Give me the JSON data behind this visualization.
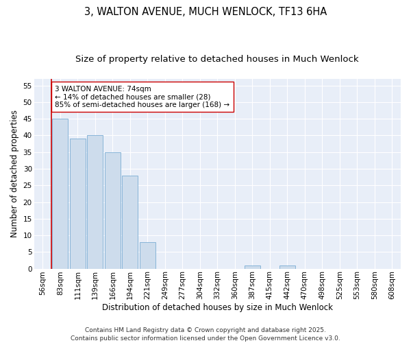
{
  "title1": "3, WALTON AVENUE, MUCH WENLOCK, TF13 6HA",
  "title2": "Size of property relative to detached houses in Much Wenlock",
  "xlabel": "Distribution of detached houses by size in Much Wenlock",
  "ylabel": "Number of detached properties",
  "categories": [
    "56sqm",
    "83sqm",
    "111sqm",
    "139sqm",
    "166sqm",
    "194sqm",
    "221sqm",
    "249sqm",
    "277sqm",
    "304sqm",
    "332sqm",
    "360sqm",
    "387sqm",
    "415sqm",
    "442sqm",
    "470sqm",
    "498sqm",
    "525sqm",
    "553sqm",
    "580sqm",
    "608sqm"
  ],
  "values": [
    0,
    45,
    39,
    40,
    35,
    28,
    8,
    0,
    0,
    0,
    0,
    0,
    1,
    0,
    1,
    0,
    0,
    0,
    0,
    0,
    0
  ],
  "bar_color": "#cddcec",
  "bar_edge_color": "#7aadd4",
  "vline_x_index": 1,
  "vline_color": "#cc0000",
  "annotation_text": "3 WALTON AVENUE: 74sqm\n← 14% of detached houses are smaller (28)\n85% of semi-detached houses are larger (168) →",
  "annotation_box_color": "#ffffff",
  "annotation_box_edge": "#cc0000",
  "ylim_max": 57,
  "yticks": [
    0,
    5,
    10,
    15,
    20,
    25,
    30,
    35,
    40,
    45,
    50,
    55
  ],
  "bg_color": "#ffffff",
  "plot_bg_color": "#e8eef8",
  "footer_text": "Contains HM Land Registry data © Crown copyright and database right 2025.\nContains public sector information licensed under the Open Government Licence v3.0.",
  "title1_fontsize": 10.5,
  "title2_fontsize": 9.5,
  "axis_label_fontsize": 8.5,
  "tick_fontsize": 7.5,
  "annotation_fontsize": 7.5,
  "footer_fontsize": 6.5
}
